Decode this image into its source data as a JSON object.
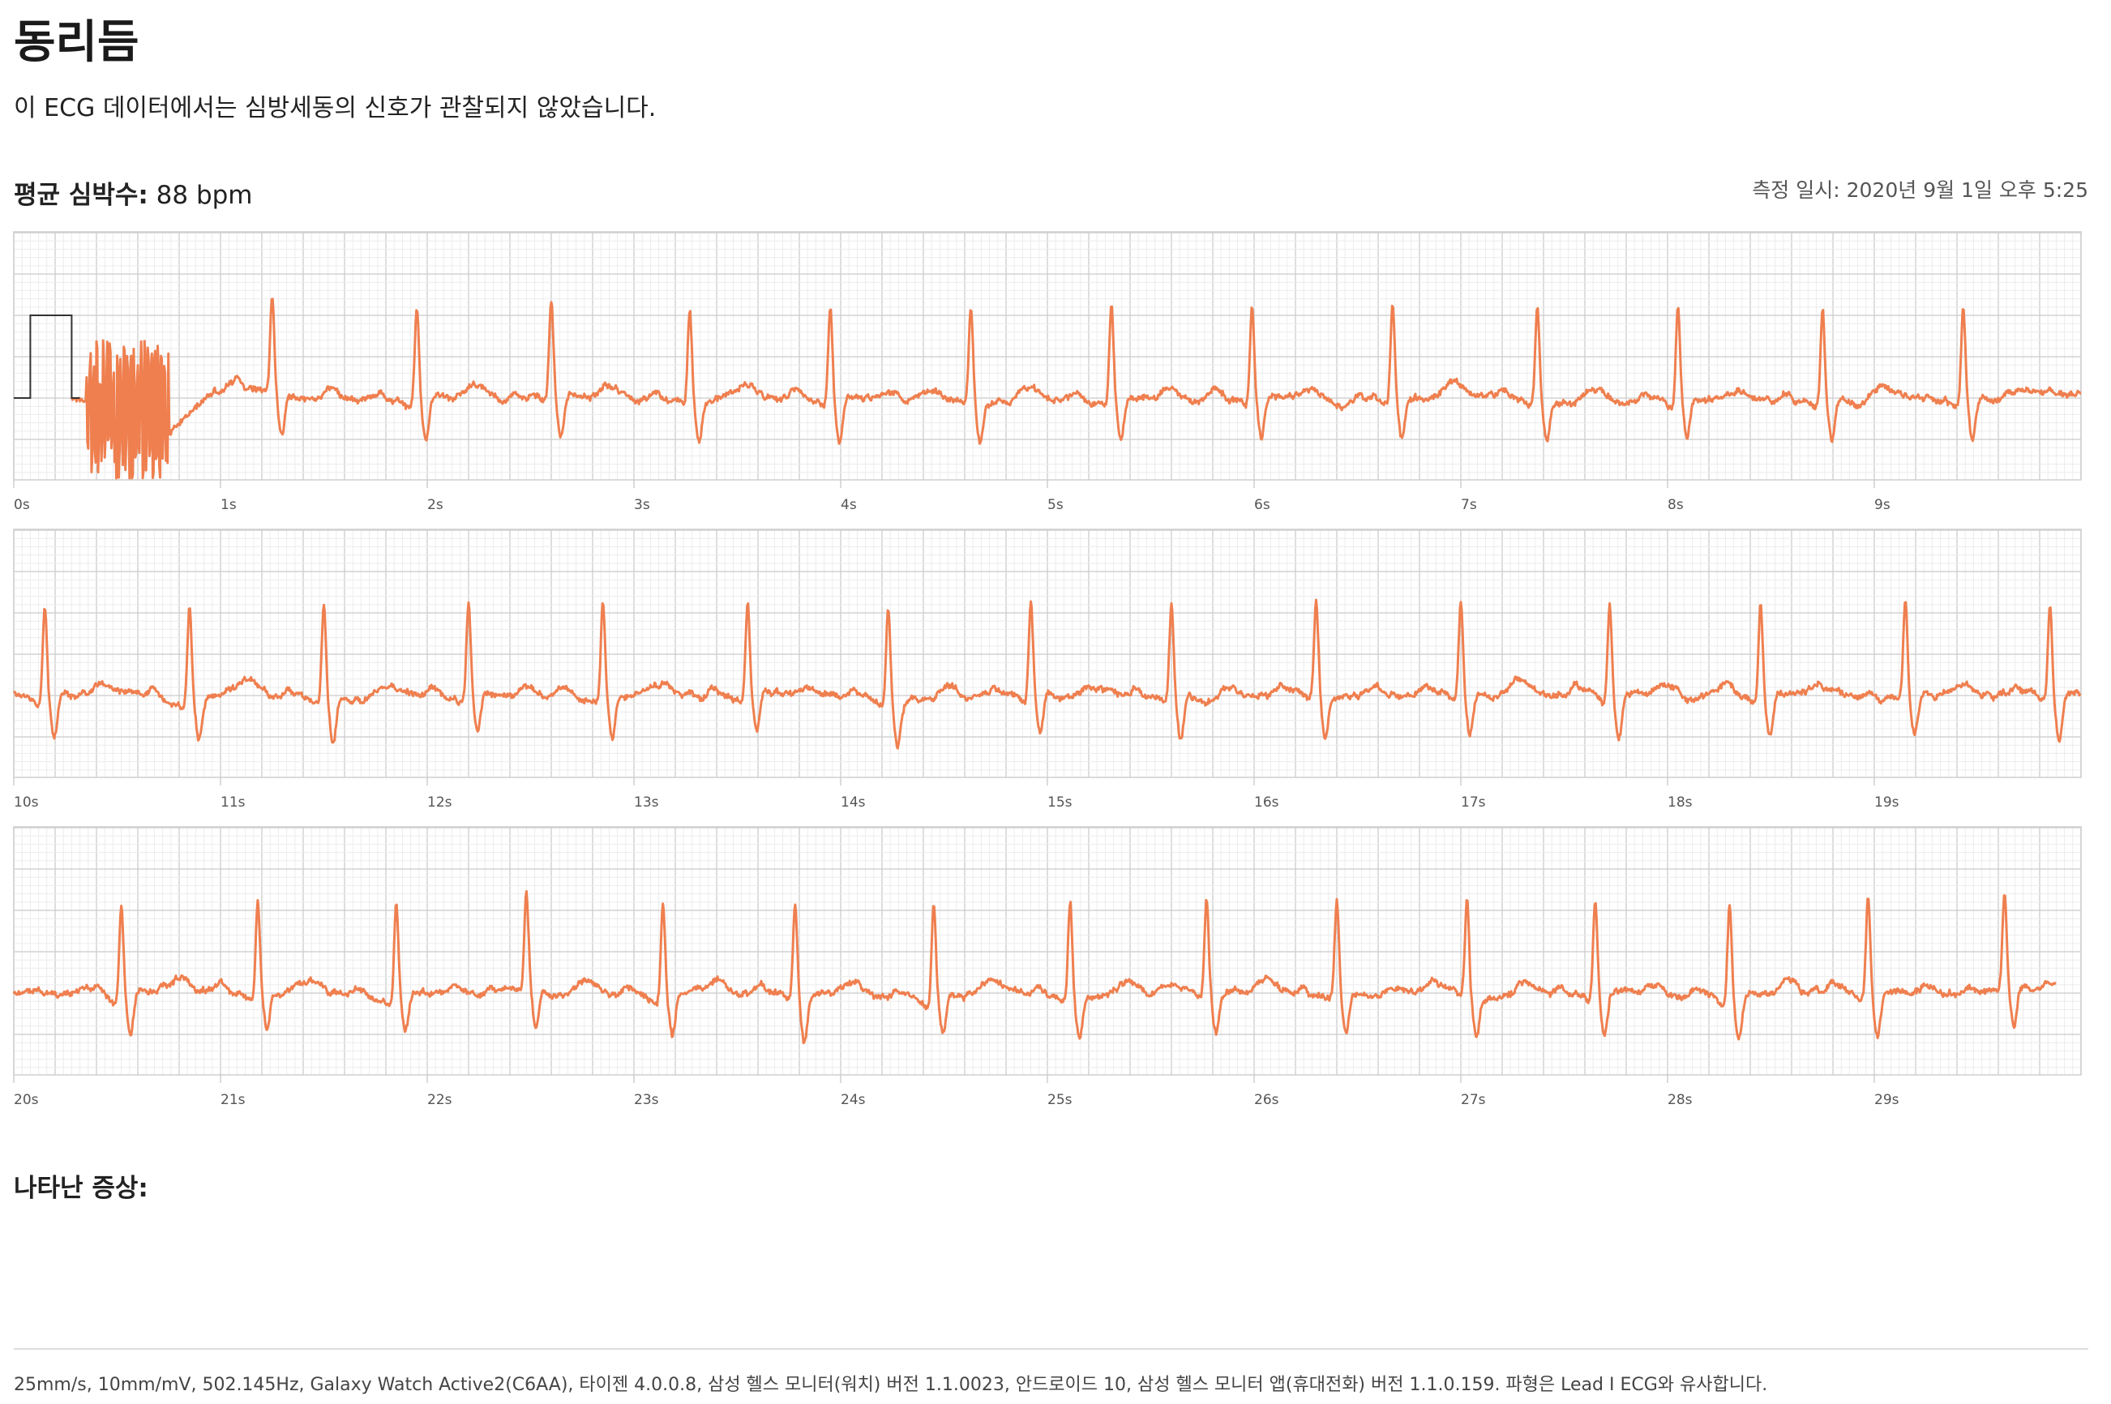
{
  "report": {
    "title": "동리듬",
    "description": "이 ECG 데이터에서는 심방세동의 신호가 관찰되지 않았습니다.",
    "heart_rate_label": "평균 심박수:",
    "heart_rate_value": "88 bpm",
    "date_label": "측정 일시:",
    "date_value": "2020년 9월 1일 오후 5:25",
    "symptoms_label": "나타난 증상:",
    "footer": "25mm/s, 10mm/mV, 502.145Hz, Galaxy Watch Active2(C6AA), 타이젠 4.0.0.8, 삼성 헬스 모니터(워치) 버전 1.1.0023, 안드로이드 10, 삼성 헬스 모니터 앱(휴대전화) 버전 1.1.0.159. 파형은 Lead I ECG와 유사합니다."
  },
  "colors": {
    "trace": "#ef7f4f",
    "grid_major": "#cfcfcf",
    "grid_minor": "#ececec",
    "calibration": "#333333",
    "tick_label": "#555555"
  },
  "chart_data": {
    "type": "line",
    "title": "",
    "xlabel": "",
    "ylabel": "",
    "x_unit": "s",
    "y_unit": "mV",
    "grid": true,
    "strips": [
      {
        "x_range": [
          0,
          10
        ],
        "tick_labels": [
          "0s",
          "1s",
          "2s",
          "3s",
          "4s",
          "5s",
          "6s",
          "7s",
          "8s",
          "9s"
        ],
        "r_peaks_s": [
          1.25,
          1.95,
          2.6,
          3.27,
          3.95,
          4.63,
          5.31,
          5.99,
          6.67,
          7.37,
          8.05,
          8.75,
          9.43
        ],
        "events": [
          {
            "type": "calibration_pulse",
            "x_start": 0.08,
            "x_end": 0.28,
            "amplitude_mV": 1.0
          },
          {
            "type": "motion_artifact",
            "x_start": 0.35,
            "x_end": 0.75
          }
        ]
      },
      {
        "x_range": [
          10,
          20
        ],
        "tick_labels": [
          "10s",
          "11s",
          "12s",
          "13s",
          "14s",
          "15s",
          "16s",
          "17s",
          "18s",
          "19s"
        ],
        "r_peaks_s": [
          10.15,
          10.85,
          11.5,
          12.2,
          12.85,
          13.55,
          14.23,
          14.92,
          15.6,
          16.3,
          17.0,
          17.72,
          18.45,
          19.15,
          19.85
        ]
      },
      {
        "x_range": [
          20,
          30
        ],
        "tick_labels": [
          "20s",
          "21s",
          "22s",
          "23s",
          "24s",
          "25s",
          "26s",
          "27s",
          "28s",
          "29s"
        ],
        "r_peaks_s": [
          20.52,
          21.18,
          21.85,
          22.48,
          23.14,
          23.78,
          24.45,
          25.11,
          25.77,
          26.4,
          27.03,
          27.65,
          28.3,
          28.97,
          29.63
        ],
        "trace_end_s": 29.88
      }
    ],
    "series": [
      {
        "name": "",
        "beat_amplitude_mV": 1.15,
        "s_wave_mV": -0.5,
        "t_wave_mV": 0.14
      }
    ]
  }
}
